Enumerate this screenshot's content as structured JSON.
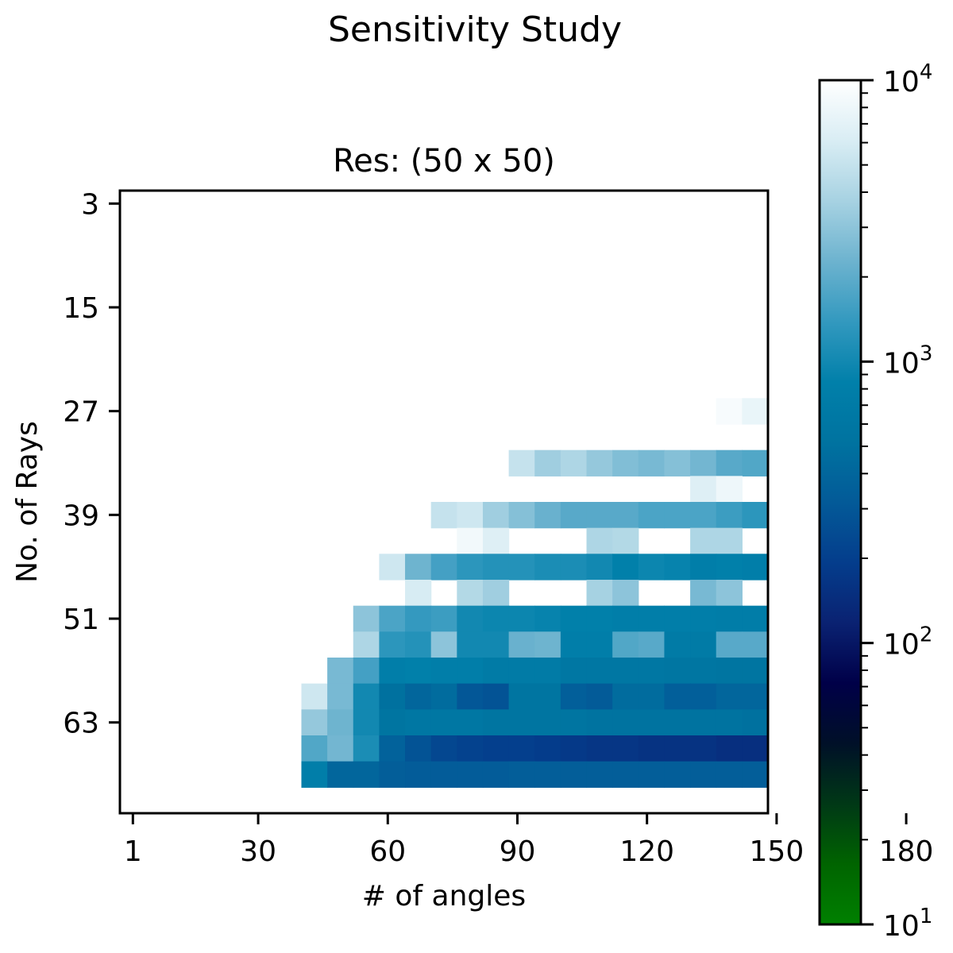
{
  "chart_data": {
    "type": "heatmap",
    "suptitle": "Sensitivity Study",
    "title": "Res: (50 x 50)",
    "xlabel": "# of angles",
    "ylabel": "No. of Rays",
    "x_values_start": 1,
    "x_values_step": 6,
    "x_values_count": 25,
    "y_values_start": 3,
    "y_values_step": 3,
    "y_values_count": 24,
    "x_ticks": [
      "1",
      "30",
      "60",
      "90",
      "120",
      "150",
      "180"
    ],
    "y_ticks": [
      "3",
      "15",
      "27",
      "39",
      "51",
      "63"
    ],
    "colorbar": {
      "scale": "log",
      "min": 10,
      "max": 10000,
      "tick_values": [
        10,
        100,
        1000,
        10000
      ],
      "tick_labels": [
        {
          "base": "10",
          "exp": "1"
        },
        {
          "base": "10",
          "exp": "2"
        },
        {
          "base": "10",
          "exp": "3"
        },
        {
          "base": "10",
          "exp": "4"
        }
      ],
      "colormap": [
        "#008000",
        "#006400",
        "#003816",
        "#001028",
        "#000048",
        "#0a2272",
        "#043d8c",
        "#035a98",
        "#0073a0",
        "#0180aa",
        "#3399bf",
        "#6db3cf",
        "#a7d2e2",
        "#d9edf4",
        "#ffffff"
      ]
    },
    "rows_note": "values per row listed for # of angles = 1,7,...,181; null = no value (white)",
    "rows": [
      [
        null,
        null,
        null,
        null,
        null,
        null,
        null,
        null,
        null,
        null,
        null,
        null,
        null,
        null,
        null,
        null,
        null,
        null,
        null,
        null,
        null,
        null,
        null,
        null,
        null
      ],
      [
        null,
        null,
        null,
        null,
        null,
        null,
        null,
        null,
        null,
        null,
        null,
        null,
        null,
        null,
        null,
        null,
        null,
        null,
        null,
        null,
        null,
        null,
        null,
        null,
        null
      ],
      [
        null,
        null,
        null,
        null,
        null,
        null,
        null,
        null,
        null,
        null,
        null,
        null,
        null,
        null,
        null,
        null,
        null,
        null,
        null,
        null,
        null,
        null,
        null,
        null,
        null
      ],
      [
        null,
        null,
        null,
        null,
        null,
        null,
        null,
        null,
        null,
        null,
        null,
        null,
        null,
        null,
        null,
        null,
        null,
        null,
        null,
        null,
        null,
        null,
        null,
        null,
        null
      ],
      [
        null,
        null,
        null,
        null,
        null,
        null,
        null,
        null,
        null,
        null,
        null,
        null,
        null,
        null,
        null,
        null,
        null,
        null,
        null,
        null,
        null,
        null,
        null,
        null,
        null
      ],
      [
        null,
        null,
        null,
        null,
        null,
        null,
        null,
        null,
        null,
        null,
        null,
        null,
        null,
        null,
        null,
        null,
        null,
        null,
        null,
        null,
        null,
        null,
        null,
        null,
        null
      ],
      [
        null,
        null,
        null,
        null,
        null,
        null,
        null,
        null,
        null,
        null,
        null,
        null,
        null,
        null,
        null,
        null,
        null,
        null,
        null,
        null,
        null,
        null,
        null,
        null,
        null
      ],
      [
        null,
        null,
        null,
        null,
        null,
        null,
        null,
        null,
        null,
        null,
        null,
        null,
        null,
        null,
        null,
        null,
        null,
        null,
        null,
        null,
        null,
        null,
        null,
        null,
        null
      ],
      [
        null,
        null,
        null,
        null,
        null,
        null,
        null,
        null,
        null,
        null,
        null,
        null,
        null,
        null,
        null,
        null,
        null,
        null,
        null,
        null,
        null,
        null,
        null,
        9000,
        7500
      ],
      [
        null,
        null,
        null,
        null,
        null,
        null,
        null,
        null,
        null,
        null,
        null,
        null,
        null,
        null,
        null,
        null,
        null,
        null,
        null,
        null,
        null,
        null,
        null,
        null,
        null
      ],
      [
        null,
        null,
        null,
        null,
        null,
        null,
        null,
        null,
        null,
        null,
        null,
        null,
        null,
        null,
        null,
        5000,
        3500,
        4000,
        3200,
        2700,
        2500,
        2800,
        2400,
        1900,
        1800
      ],
      [
        null,
        null,
        null,
        null,
        null,
        null,
        null,
        null,
        null,
        null,
        null,
        null,
        null,
        null,
        null,
        null,
        null,
        null,
        null,
        null,
        null,
        null,
        6500,
        8000,
        null
      ],
      [
        null,
        null,
        null,
        null,
        null,
        null,
        null,
        null,
        null,
        null,
        null,
        null,
        5000,
        5500,
        3500,
        2800,
        2200,
        1900,
        1900,
        1900,
        1700,
        1700,
        1700,
        1500,
        1300
      ],
      [
        null,
        null,
        null,
        null,
        null,
        null,
        null,
        null,
        null,
        null,
        null,
        null,
        null,
        8500,
        6500,
        null,
        null,
        null,
        4000,
        4200,
        null,
        null,
        4000,
        4000,
        null
      ],
      [
        null,
        null,
        null,
        null,
        null,
        null,
        null,
        null,
        null,
        null,
        5500,
        2300,
        1600,
        1300,
        1200,
        1200,
        1100,
        1100,
        1000,
        850,
        950,
        900,
        800,
        850,
        800
      ],
      [
        null,
        null,
        null,
        null,
        null,
        null,
        null,
        null,
        null,
        null,
        null,
        6000,
        null,
        4200,
        3500,
        null,
        null,
        null,
        3700,
        3000,
        null,
        null,
        2500,
        3000,
        null
      ],
      [
        null,
        null,
        null,
        null,
        null,
        null,
        null,
        null,
        null,
        3000,
        1700,
        1400,
        1500,
        1000,
        950,
        950,
        900,
        850,
        850,
        800,
        800,
        800,
        800,
        750,
        750
      ],
      [
        null,
        null,
        null,
        null,
        null,
        null,
        null,
        null,
        null,
        4000,
        1300,
        1200,
        3000,
        1000,
        1000,
        2200,
        2300,
        800,
        800,
        1800,
        1900,
        700,
        700,
        1900,
        1900
      ],
      [
        null,
        null,
        null,
        null,
        null,
        null,
        null,
        null,
        2500,
        1600,
        800,
        850,
        800,
        800,
        700,
        700,
        700,
        600,
        600,
        600,
        600,
        580,
        580,
        550,
        550
      ],
      [
        null,
        null,
        null,
        null,
        null,
        null,
        null,
        5500,
        2500,
        1000,
        500,
        400,
        450,
        300,
        280,
        550,
        550,
        350,
        320,
        450,
        450,
        350,
        350,
        400,
        400
      ],
      [
        null,
        null,
        null,
        null,
        null,
        null,
        null,
        3200,
        2300,
        1000,
        550,
        600,
        600,
        600,
        550,
        550,
        550,
        550,
        520,
        520,
        520,
        520,
        520,
        520,
        500
      ],
      [
        null,
        null,
        null,
        null,
        null,
        null,
        null,
        1800,
        2400,
        1100,
        370,
        280,
        230,
        210,
        200,
        200,
        190,
        180,
        170,
        170,
        160,
        160,
        160,
        150,
        150
      ],
      [
        null,
        null,
        null,
        null,
        null,
        null,
        null,
        800,
        400,
        400,
        340,
        330,
        330,
        330,
        330,
        340,
        340,
        340,
        340,
        340,
        340,
        340,
        340,
        340,
        340
      ],
      [
        null,
        null,
        null,
        null,
        null,
        null,
        null,
        null,
        null,
        null,
        null,
        null,
        null,
        null,
        null,
        null,
        null,
        null,
        null,
        null,
        null,
        null,
        null,
        null,
        null
      ]
    ]
  }
}
